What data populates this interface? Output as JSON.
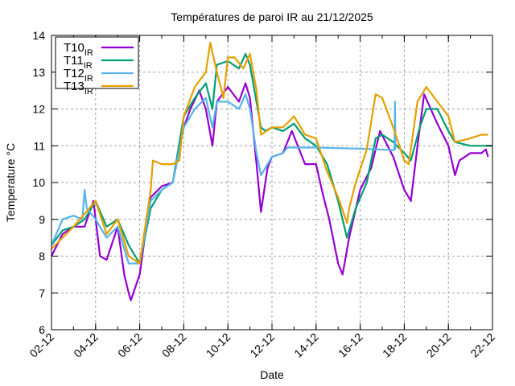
{
  "chart_data": {
    "type": "line",
    "title": "Températures de paroi IR au 21/12/2025",
    "xlabel": "Date",
    "ylabel": "Temperature °C",
    "xlim": [
      0,
      20
    ],
    "ylim": [
      6,
      14
    ],
    "x_unit": "days since 02-12",
    "grid": true,
    "legend_position": "top-left",
    "x_ticks": [
      "02-12",
      "04-12",
      "06-12",
      "08-12",
      "10-12",
      "12-12",
      "14-12",
      "16-12",
      "18-12",
      "20-12",
      "22-12"
    ],
    "y_ticks": [
      "6",
      "7",
      "8",
      "9",
      "10",
      "11",
      "12",
      "13",
      "14"
    ],
    "series": [
      {
        "name": "T10",
        "subscript": "IR",
        "color": "#9400d3",
        "x": [
          0,
          0.5,
          1,
          1.5,
          1.9,
          2.2,
          2.5,
          3,
          3.3,
          3.5,
          3.6,
          4,
          4.3,
          4.5,
          5,
          5.5,
          6,
          6.3,
          6.7,
          7,
          7.3,
          7.5,
          8,
          8.5,
          8.8,
          9,
          9.3,
          9.5,
          9.8,
          10,
          10.5,
          10.9,
          11.5,
          12,
          12.3,
          12.6,
          13,
          13.2,
          13.5,
          14,
          14.5,
          14.9,
          15.5,
          16,
          16.3,
          16.6,
          16.9,
          17.5,
          18,
          18.3,
          18.5,
          19,
          19.5,
          19.7,
          19.8
        ],
        "y": [
          8.0,
          8.6,
          8.8,
          8.8,
          9.5,
          8.0,
          7.9,
          8.8,
          7.5,
          7.0,
          6.8,
          7.5,
          8.8,
          9.6,
          9.9,
          10.0,
          11.5,
          12.0,
          12.5,
          12.0,
          11.0,
          12.2,
          12.6,
          12.2,
          12.7,
          12.3,
          10.5,
          9.2,
          10.4,
          10.7,
          10.8,
          11.4,
          10.5,
          10.5,
          9.7,
          9.0,
          7.8,
          7.5,
          8.5,
          9.8,
          10.4,
          11.4,
          10.7,
          9.8,
          9.5,
          11.0,
          12.4,
          11.6,
          11.0,
          10.2,
          10.6,
          10.8,
          10.8,
          10.9,
          10.7
        ]
      },
      {
        "name": "T11",
        "subscript": "IR",
        "color": "#009e73",
        "x": [
          0,
          0.5,
          1,
          1.5,
          2,
          2.5,
          3,
          3.5,
          4,
          4.5,
          5,
          5.5,
          6,
          6.5,
          7,
          7.3,
          7.5,
          8,
          8.5,
          8.8,
          9,
          9.5,
          9.7,
          10,
          10.5,
          11,
          11.5,
          12,
          12.5,
          13,
          13.4,
          13.8,
          14.3,
          14.7,
          15,
          15.5,
          16,
          16.3,
          16.7,
          17,
          17.5,
          18,
          18.3,
          19,
          19.5,
          20
        ],
        "y": [
          8.3,
          8.7,
          8.8,
          9.0,
          9.5,
          8.8,
          9.0,
          8.3,
          7.8,
          9.3,
          9.8,
          10.0,
          11.8,
          12.3,
          12.7,
          12.0,
          13.2,
          13.3,
          13.1,
          13.5,
          13.2,
          11.5,
          11.4,
          11.5,
          11.4,
          11.6,
          11.2,
          11.0,
          10.5,
          9.5,
          8.5,
          9.3,
          10.0,
          11.2,
          11.3,
          11.1,
          10.8,
          10.6,
          11.5,
          12.0,
          12.0,
          11.4,
          11.1,
          11.0,
          11.0,
          11.0
        ]
      },
      {
        "name": "T12",
        "subscript": "IR",
        "color": "#56b4e9",
        "x": [
          0,
          0.5,
          1,
          1.4,
          1.5,
          1.6,
          2,
          2.5,
          3,
          3.5,
          4,
          4.5,
          5,
          5.5,
          6,
          6.5,
          7,
          7.3,
          7.5,
          8,
          8.5,
          8.8,
          9,
          9.3,
          9.5,
          10,
          10.5,
          10.7,
          12,
          14,
          15.55,
          15.58,
          15.6
        ],
        "y": [
          8.3,
          9.0,
          9.1,
          9.0,
          9.8,
          9.3,
          9.0,
          8.5,
          8.8,
          7.8,
          7.8,
          9.5,
          9.8,
          10.0,
          11.5,
          12.0,
          12.3,
          11.5,
          12.2,
          12.2,
          12.0,
          12.4,
          12.0,
          10.8,
          10.2,
          10.7,
          10.8,
          10.95,
          10.95,
          10.92,
          10.88,
          12.2,
          10.9
        ]
      },
      {
        "name": "T13",
        "subscript": "IR",
        "color": "#e69f00",
        "x": [
          0,
          1,
          2,
          2.5,
          3,
          3.5,
          4,
          4.5,
          4.6,
          5,
          5.5,
          5.8,
          6,
          6.5,
          7,
          7.2,
          7.5,
          7.8,
          8,
          8.3,
          8.7,
          9,
          9.3,
          9.5,
          10,
          10.5,
          11,
          11.5,
          12,
          12.5,
          13,
          13.4,
          13.5,
          13.8,
          14.3,
          14.7,
          15,
          15.5,
          16,
          16.2,
          16.6,
          17,
          17.5,
          18,
          18.3,
          19,
          19.5,
          19.8
        ],
        "y": [
          8.2,
          8.8,
          9.5,
          8.6,
          9.0,
          8.0,
          7.8,
          9.8,
          10.6,
          10.5,
          10.5,
          10.6,
          11.8,
          12.6,
          13.0,
          13.8,
          13.0,
          12.3,
          13.4,
          13.4,
          13.1,
          13.5,
          12.5,
          11.3,
          11.5,
          11.5,
          11.8,
          11.3,
          11.2,
          10.3,
          9.6,
          8.9,
          9.3,
          10.0,
          10.9,
          12.4,
          12.3,
          11.5,
          10.6,
          10.5,
          12.2,
          12.6,
          12.2,
          11.8,
          11.1,
          11.2,
          11.3,
          11.3
        ]
      }
    ]
  }
}
